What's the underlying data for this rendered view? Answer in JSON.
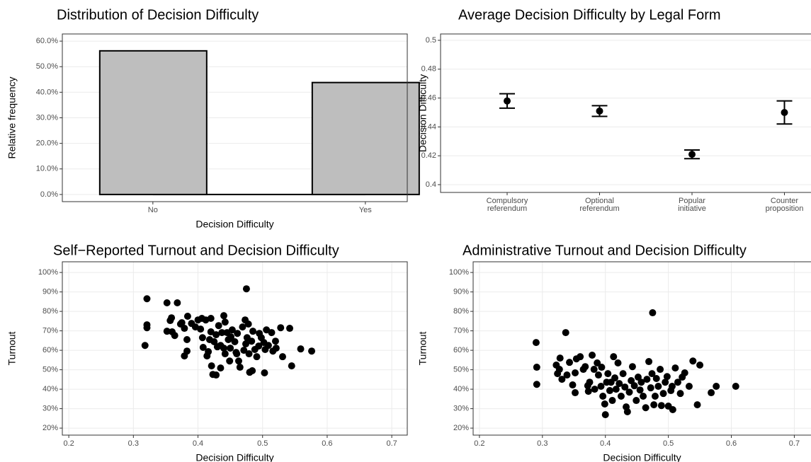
{
  "chart_data": [
    {
      "type": "bar",
      "title": "Distribution of Decision Difficulty",
      "x_label": "Decision Difficulty",
      "y_label": "Relative frequency",
      "categories": [
        "No",
        "Yes"
      ],
      "values": [
        56.2,
        43.8
      ],
      "color": "#bebebe",
      "ylim": [
        -2.8,
        62.8
      ],
      "yticks": [
        {
          "value": 0,
          "label": "0.0%"
        },
        {
          "value": 10,
          "label": "10.0%"
        },
        {
          "value": 20,
          "label": "20.0%"
        },
        {
          "value": 30,
          "label": "30.0%"
        },
        {
          "value": 40,
          "label": "40.0%"
        },
        {
          "value": 50,
          "label": "50.0%"
        },
        {
          "value": 60,
          "label": "60.0%"
        }
      ],
      "grid": true
    },
    {
      "type": "errorbar",
      "title": "Average Decision Difficulty by Legal Form",
      "y_label": "Decision Difficulty",
      "categories": [
        [
          "Compulsory",
          "referendum"
        ],
        [
          "Optional",
          "referendum"
        ],
        [
          "Popular",
          "initiative"
        ],
        [
          "Counter",
          "proposition"
        ]
      ],
      "values": [
        0.458,
        0.451,
        0.421,
        0.45
      ],
      "errors": [
        0.005,
        0.0037,
        0.003,
        0.008
      ],
      "color": "#000000",
      "ylim": [
        0.3946,
        0.5044
      ],
      "yticks": [
        0.4,
        0.42,
        0.44,
        0.46,
        0.48,
        0.5
      ],
      "grid": true
    },
    {
      "type": "scatter",
      "title": "Self−Reported Turnout and Decision Difficulty",
      "x_label": "Decision Difficulty",
      "y_label": "Turnout",
      "color": "#000000",
      "x": [
        0.321,
        0.321,
        0.321,
        0.318,
        0.352,
        0.368,
        0.352,
        0.36,
        0.357,
        0.359,
        0.364,
        0.373,
        0.379,
        0.375,
        0.384,
        0.39,
        0.396,
        0.4,
        0.383,
        0.379,
        0.383,
        0.404,
        0.407,
        0.408,
        0.406,
        0.412,
        0.414,
        0.418,
        0.421,
        0.42,
        0.42,
        0.425,
        0.428,
        0.43,
        0.432,
        0.435,
        0.437,
        0.44,
        0.442,
        0.445,
        0.447,
        0.45,
        0.451,
        0.453,
        0.457,
        0.459,
        0.461,
        0.463,
        0.465,
        0.44,
        0.442,
        0.449,
        0.435,
        0.423,
        0.471,
        0.474,
        0.476,
        0.475,
        0.473,
        0.469,
        0.479,
        0.48,
        0.478,
        0.483,
        0.485,
        0.488,
        0.491,
        0.494,
        0.495,
        0.498,
        0.502,
        0.504,
        0.506,
        0.503,
        0.484,
        0.509,
        0.514,
        0.516,
        0.52,
        0.521,
        0.528,
        0.531,
        0.542,
        0.545,
        0.559,
        0.576,
        0.416,
        0.46,
        0.428
      ],
      "y": [
        86.5,
        73.1,
        71.6,
        62.5,
        84.4,
        84.4,
        69.8,
        69.5,
        75.3,
        76.7,
        67.6,
        73.5,
        71.3,
        74.2,
        77.5,
        73.8,
        72.0,
        75.6,
        65.5,
        57.1,
        59.6,
        70.9,
        66.5,
        61.5,
        76.4,
        75.6,
        57.1,
        65.5,
        52.0,
        76.4,
        69.5,
        64.4,
        68.0,
        61.8,
        72.7,
        62.5,
        69.1,
        77.8,
        58.2,
        69.1,
        65.5,
        61.1,
        66.9,
        70.5,
        64.4,
        58.9,
        68.7,
        54.5,
        51.3,
        61.1,
        74.5,
        54.5,
        50.9,
        47.6,
        60.0,
        63.3,
        66.5,
        91.6,
        75.6,
        72.0,
        58.2,
        48.7,
        73.5,
        64.7,
        69.8,
        60.4,
        56.7,
        62.2,
        68.7,
        66.5,
        64.0,
        60.4,
        70.5,
        48.4,
        49.5,
        62.5,
        69.1,
        59.6,
        64.7,
        61.1,
        71.6,
        56.7,
        71.3,
        52.0,
        60.7,
        59.6,
        59.3,
        58.2,
        47.3
      ],
      "xlim": [
        0.19,
        0.724
      ],
      "xticks": [
        0.2,
        0.3,
        0.4,
        0.5,
        0.6,
        0.7
      ],
      "ylim": [
        16.4,
        105.5
      ],
      "yticks": [
        {
          "value": 20,
          "label": "20%"
        },
        {
          "value": 30,
          "label": "30%"
        },
        {
          "value": 40,
          "label": "40%"
        },
        {
          "value": 50,
          "label": "50%"
        },
        {
          "value": 60,
          "label": "60%"
        },
        {
          "value": 70,
          "label": "70%"
        },
        {
          "value": 80,
          "label": "80%"
        },
        {
          "value": 90,
          "label": "90%"
        },
        {
          "value": 100,
          "label": "100%"
        }
      ],
      "grid": true
    },
    {
      "type": "scatter",
      "title": "Administrative Turnout and Decision Difficulty",
      "x_label": "Decision Difficulty",
      "y_label": "Turnout",
      "color": "#000000",
      "x": [
        0.29,
        0.291,
        0.291,
        0.337,
        0.322,
        0.324,
        0.327,
        0.331,
        0.328,
        0.339,
        0.343,
        0.348,
        0.352,
        0.354,
        0.352,
        0.36,
        0.365,
        0.368,
        0.372,
        0.373,
        0.375,
        0.379,
        0.382,
        0.383,
        0.387,
        0.389,
        0.393,
        0.394,
        0.396,
        0.399,
        0.4,
        0.402,
        0.404,
        0.407,
        0.409,
        0.411,
        0.413,
        0.415,
        0.417,
        0.42,
        0.422,
        0.425,
        0.428,
        0.431,
        0.433,
        0.435,
        0.438,
        0.441,
        0.443,
        0.446,
        0.449,
        0.452,
        0.455,
        0.457,
        0.46,
        0.464,
        0.466,
        0.469,
        0.472,
        0.475,
        0.474,
        0.477,
        0.479,
        0.481,
        0.484,
        0.487,
        0.489,
        0.492,
        0.495,
        0.498,
        0.5,
        0.504,
        0.506,
        0.507,
        0.511,
        0.515,
        0.519,
        0.522,
        0.526,
        0.533,
        0.539,
        0.546,
        0.55,
        0.568,
        0.576,
        0.607
      ],
      "y": [
        64.0,
        51.3,
        42.5,
        69.1,
        52.4,
        48.0,
        50.2,
        45.1,
        56.0,
        47.3,
        53.8,
        42.2,
        48.4,
        55.6,
        38.2,
        56.7,
        50.2,
        51.6,
        41.8,
        38.9,
        43.6,
        57.5,
        50.2,
        40.0,
        53.5,
        47.3,
        41.5,
        51.3,
        36.4,
        32.4,
        26.9,
        43.6,
        48.0,
        39.3,
        43.6,
        34.2,
        56.7,
        45.8,
        40.0,
        53.5,
        42.9,
        36.4,
        48.0,
        41.1,
        30.9,
        28.4,
        38.5,
        44.4,
        51.6,
        41.8,
        34.2,
        46.2,
        39.6,
        43.6,
        36.4,
        30.5,
        45.1,
        54.2,
        40.7,
        79.3,
        48.0,
        32.0,
        36.4,
        45.5,
        41.5,
        50.2,
        31.6,
        37.8,
        43.6,
        46.5,
        31.3,
        39.3,
        41.5,
        29.5,
        50.9,
        43.6,
        37.8,
        46.2,
        48.4,
        41.5,
        54.5,
        32.0,
        52.4,
        38.2,
        41.5,
        41.5
      ],
      "xlim": [
        0.19,
        0.7265
      ],
      "xticks": [
        0.2,
        0.3,
        0.4,
        0.5,
        0.6,
        0.7
      ],
      "ylim": [
        16.4,
        105.5
      ],
      "yticks": [
        {
          "value": 20,
          "label": "20%"
        },
        {
          "value": 30,
          "label": "30%"
        },
        {
          "value": 40,
          "label": "40%"
        },
        {
          "value": 50,
          "label": "50%"
        },
        {
          "value": 60,
          "label": "60%"
        },
        {
          "value": 70,
          "label": "70%"
        },
        {
          "value": 80,
          "label": "80%"
        },
        {
          "value": 90,
          "label": "90%"
        },
        {
          "value": 100,
          "label": "100%"
        }
      ],
      "grid": true
    }
  ]
}
